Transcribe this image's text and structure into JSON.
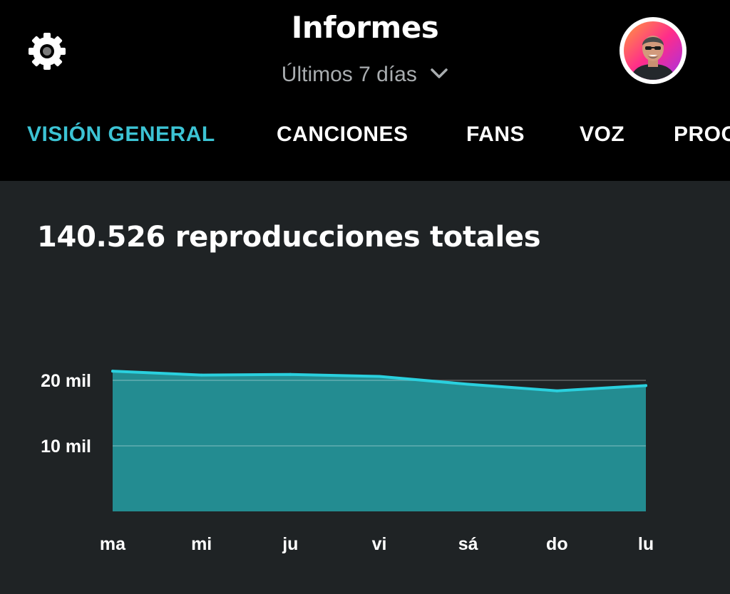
{
  "header": {
    "title": "Informes",
    "date_range": "Últimos 7 días",
    "settings_icon": "gear-icon",
    "avatar_icon": "user-avatar"
  },
  "tabs": [
    {
      "label": "VISIÓN GENERAL",
      "active": true
    },
    {
      "label": "CANCIONES",
      "active": false
    },
    {
      "label": "FANS",
      "active": false
    },
    {
      "label": "VOZ",
      "active": false
    },
    {
      "label": "PROG",
      "active": false
    }
  ],
  "colors": {
    "accent": "#3cc3d4",
    "area_fill": "#238c91",
    "line": "#2ad0de",
    "background": "#1f2325",
    "header_bg": "#000000"
  },
  "summary": {
    "total_label": "140.526 reproducciones totales"
  },
  "chart_data": {
    "type": "area",
    "categories": [
      "ma",
      "mi",
      "ju",
      "vi",
      "sá",
      "do",
      "lu"
    ],
    "values": [
      21400,
      20800,
      20900,
      20600,
      19400,
      18400,
      19200
    ],
    "yticks": [
      {
        "value": 10000,
        "label": "10 mil"
      },
      {
        "value": 20000,
        "label": "20 mil"
      }
    ],
    "ylim": [
      0,
      25000
    ],
    "grid": true
  }
}
